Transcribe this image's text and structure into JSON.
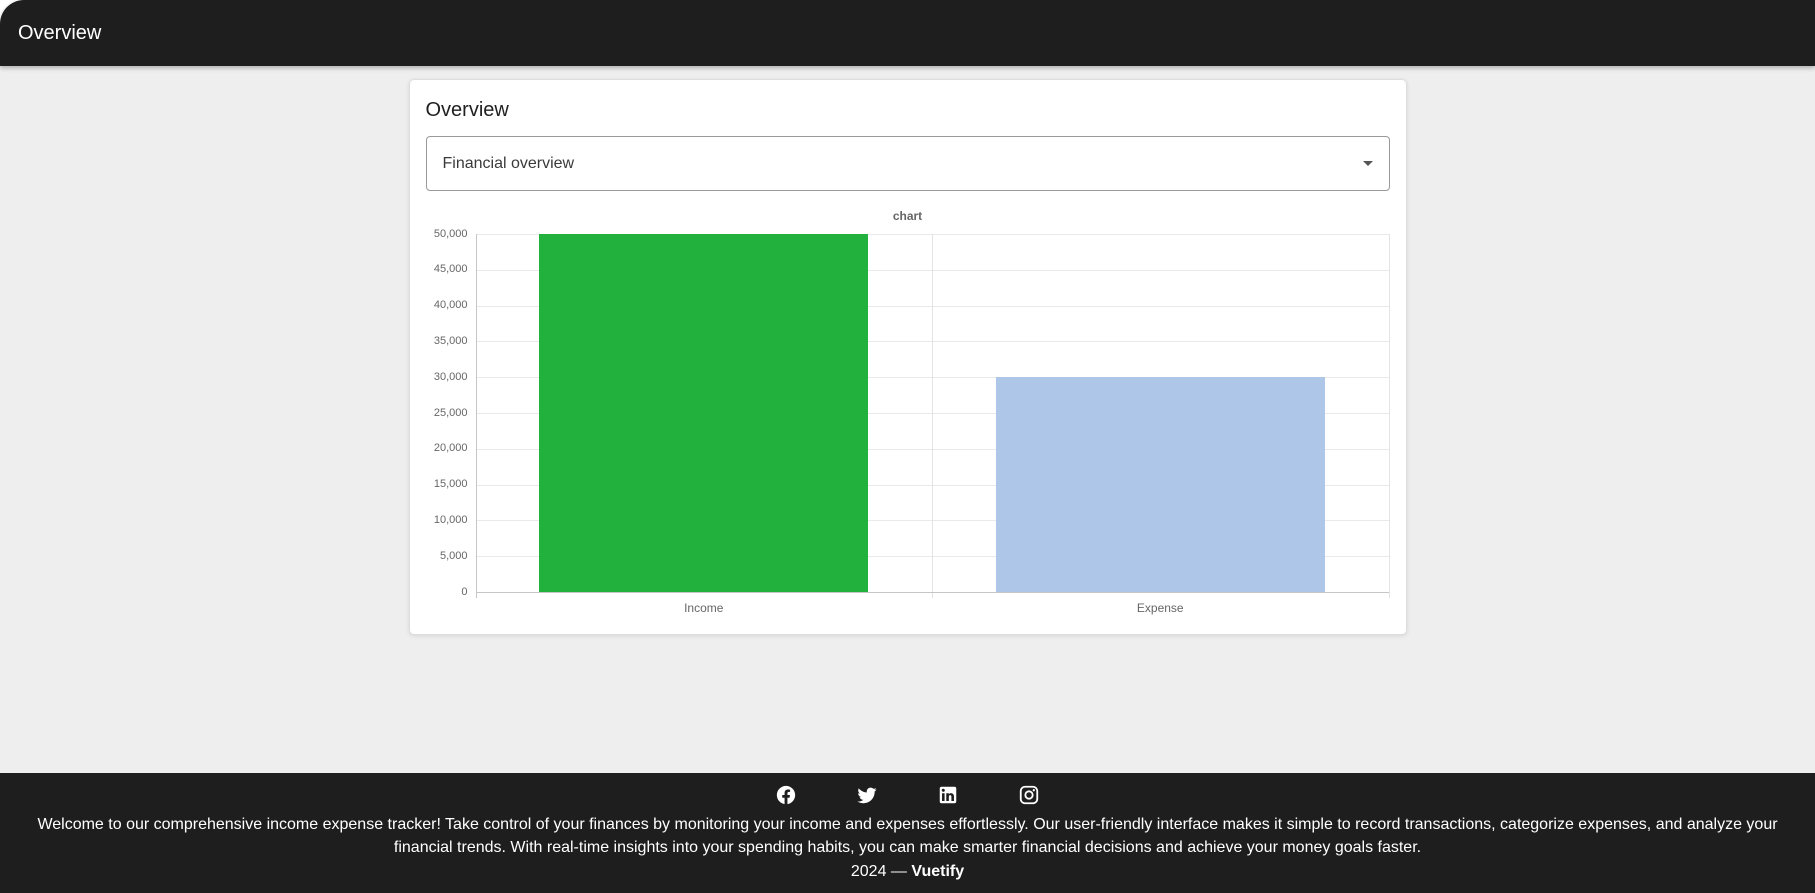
{
  "app_bar": {
    "title": "Overview",
    "bg_color": "#1e1e1e"
  },
  "page_background": "#eeeeee",
  "card": {
    "title": "Overview",
    "select": {
      "value": "Financial overview"
    }
  },
  "chart_data": {
    "type": "bar",
    "title": "chart",
    "categories": [
      "Income",
      "Expense"
    ],
    "values": [
      50000,
      30000
    ],
    "bar_colors": [
      "#22b13c",
      "#aec7e8"
    ],
    "xlabel": "",
    "ylabel": "",
    "ylim": [
      0,
      50000
    ],
    "ytick_step": 5000,
    "ytick_format": "comma",
    "grid": true,
    "legend": "none"
  },
  "footer": {
    "bg_color": "#1e1e1e",
    "social": [
      "facebook",
      "twitter",
      "linkedin",
      "instagram"
    ],
    "description": "Welcome to our comprehensive income expense tracker! Take control of your finances by monitoring your income and expenses effortlessly. Our user-friendly interface makes it simple to record transactions, categorize expenses, and analyze your financial trends. With real-time insights into your spending habits, you can make smarter financial decisions and achieve your money goals faster.",
    "copyright_prefix": "2024 —",
    "brand": "Vuetify"
  }
}
